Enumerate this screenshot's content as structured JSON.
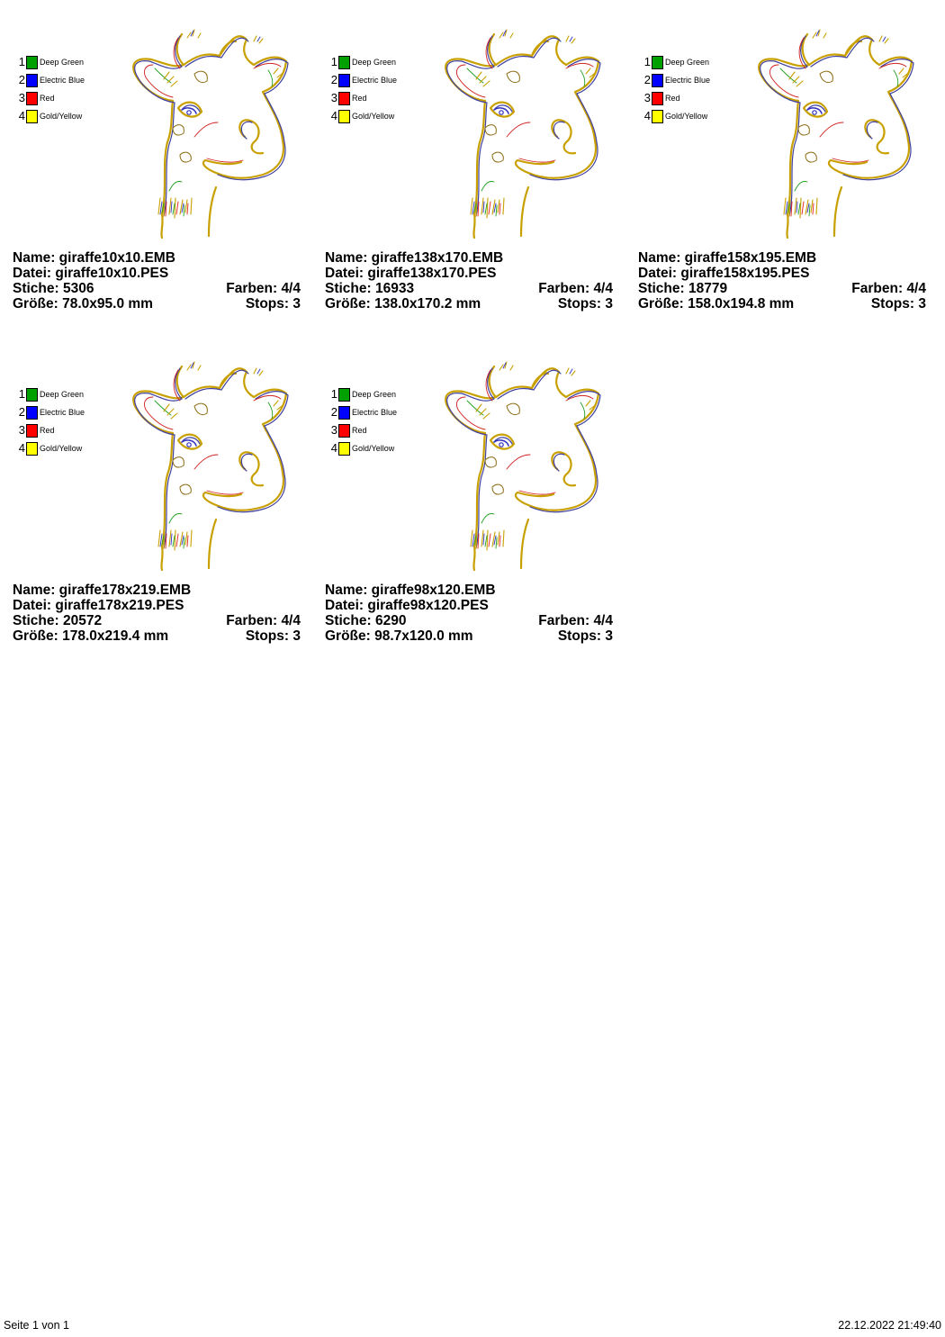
{
  "palette": [
    {
      "num": "1",
      "name": "Deep Green",
      "color": "#00a000"
    },
    {
      "num": "2",
      "name": "Electric Blue",
      "color": "#0000ff"
    },
    {
      "num": "3",
      "name": "Red",
      "color": "#ff0000"
    },
    {
      "num": "4",
      "name": "Gold/Yellow",
      "color": "#ffff00"
    }
  ],
  "designs": [
    {
      "name": "Name: giraffe10x10.EMB",
      "file": "Datei: giraffe10x10.PES",
      "stitches": "Stiche: 5306",
      "colors": "Farben: 4/4",
      "size": "Größe: 78.0x95.0 mm",
      "stops": "Stops: 3"
    },
    {
      "name": "Name: giraffe138x170.EMB",
      "file": "Datei: giraffe138x170.PES",
      "stitches": "Stiche: 16933",
      "colors": "Farben: 4/4",
      "size": "Größe: 138.0x170.2 mm",
      "stops": "Stops: 3"
    },
    {
      "name": "Name: giraffe158x195.EMB",
      "file": "Datei: giraffe158x195.PES",
      "stitches": "Stiche: 18779",
      "colors": "Farben: 4/4",
      "size": "Größe: 158.0x194.8 mm",
      "stops": "Stops: 3"
    },
    {
      "name": "Name: giraffe178x219.EMB",
      "file": "Datei: giraffe178x219.PES",
      "stitches": "Stiche: 20572",
      "colors": "Farben: 4/4",
      "size": "Größe: 178.0x219.4 mm",
      "stops": "Stops: 3"
    },
    {
      "name": "Name: giraffe98x120.EMB",
      "file": "Datei: giraffe98x120.PES",
      "stitches": "Stiche: 6290",
      "colors": "Farben: 4/4",
      "size": "Größe: 98.7x120.0 mm",
      "stops": "Stops: 3"
    }
  ],
  "footer": {
    "page": "Seite 1 von 1",
    "timestamp": "22.12.2022 21:49:40"
  }
}
